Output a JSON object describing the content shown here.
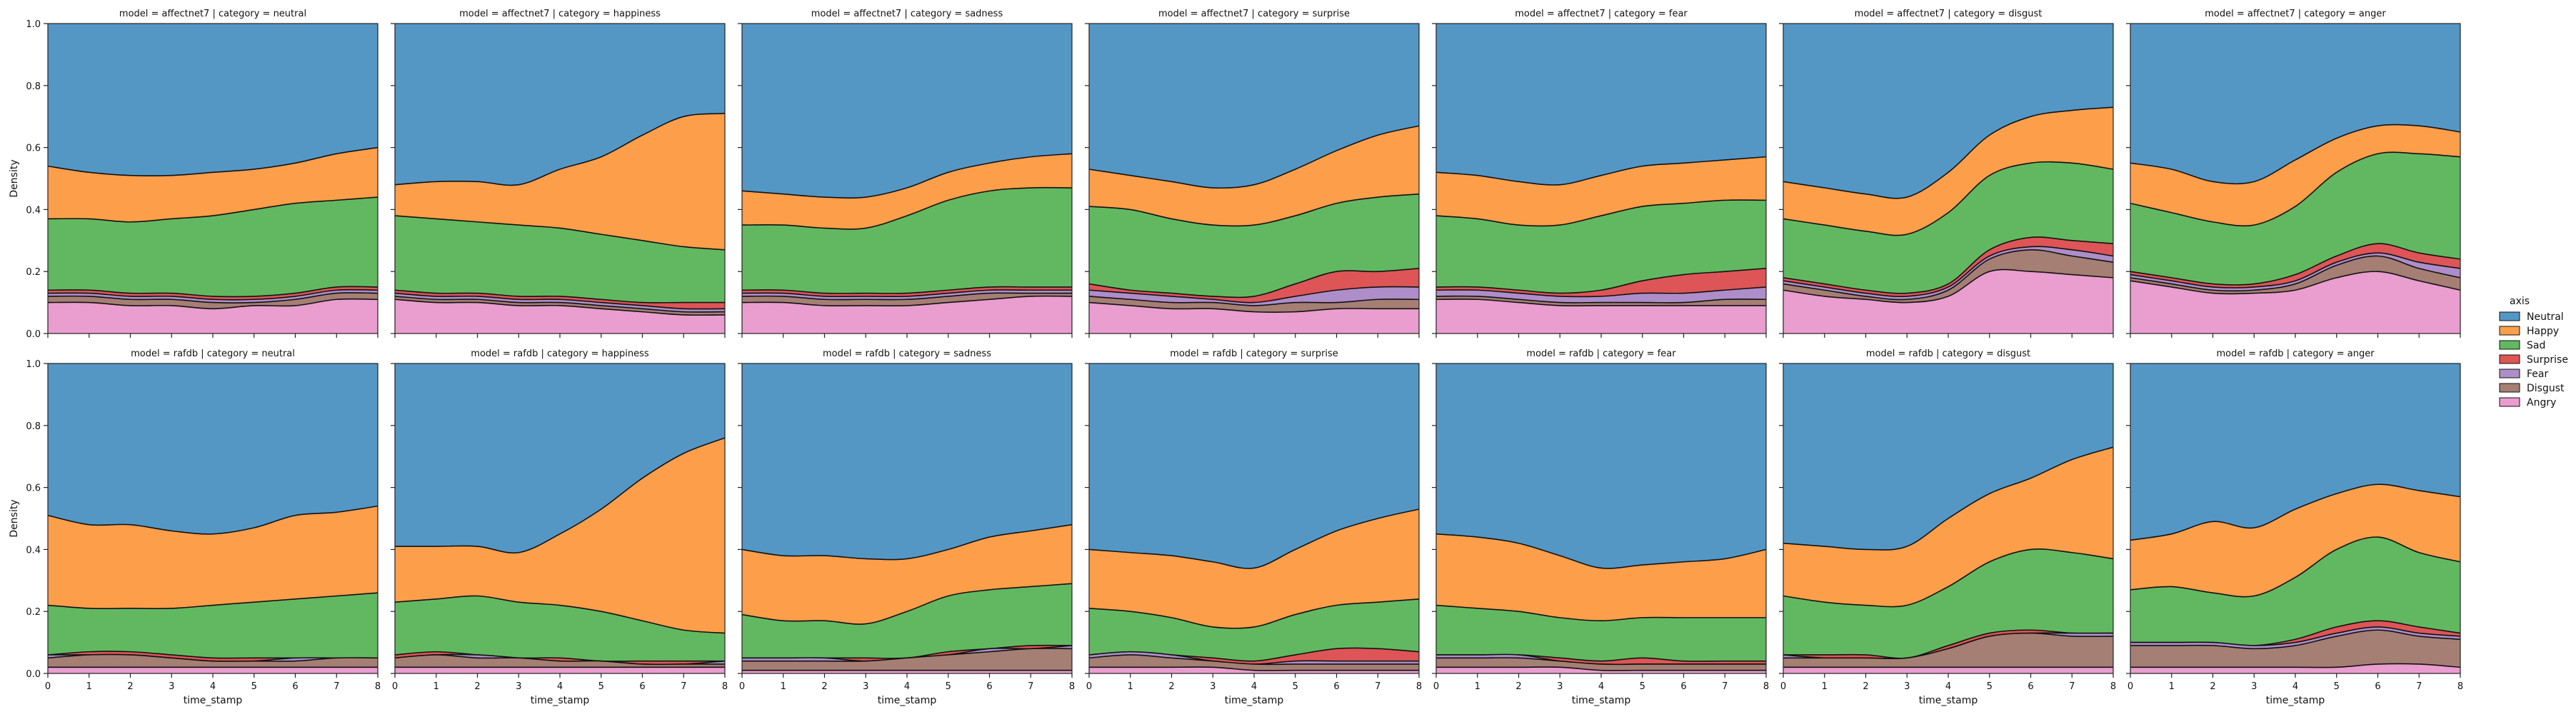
{
  "chart_data": {
    "type": "area",
    "subtype": "stacked-density-fill (proportions)",
    "facet_rows": [
      "affectnet7",
      "rafdb"
    ],
    "facet_cols": [
      "neutral",
      "happiness",
      "sadness",
      "surprise",
      "fear",
      "disgust",
      "anger"
    ],
    "facet_title_template": "model = {row} | category = {col}",
    "xlabel": "time_stamp",
    "ylabel": "Density",
    "xlim": [
      0,
      8
    ],
    "ylim": [
      0,
      1
    ],
    "xticks": [
      "0",
      "1",
      "2",
      "3",
      "4",
      "5",
      "6",
      "7",
      "8"
    ],
    "yticks": [
      "0.0",
      "0.2",
      "0.4",
      "0.6",
      "0.8",
      "1.0"
    ],
    "legend": {
      "title": "axis",
      "placement": "right-center",
      "entries": [
        "Neutral",
        "Happy",
        "Sad",
        "Surprise",
        "Fear",
        "Disgust",
        "Angry"
      ]
    },
    "colors": {
      "Neutral": "#5497c5",
      "Happy": "#fd9e4b",
      "Sad": "#62b861",
      "Surprise": "#dd5556",
      "Fear": "#ad8ec9",
      "Disgust": "#a57f74",
      "Angry": "#ea9dcf"
    },
    "x": [
      0,
      1,
      2,
      3,
      4,
      5,
      6,
      7,
      8
    ],
    "boundary_note": "Each panel lists cumulative upper boundaries (fraction 0-1) from bottom: Angry, Disgust, Fear, Surprise, Sad, Happy; Neutral fills to 1.0",
    "panels": [
      {
        "row": "affectnet7",
        "col": "neutral",
        "Angry": [
          0.1,
          0.1,
          0.09,
          0.09,
          0.08,
          0.09,
          0.09,
          0.11,
          0.11
        ],
        "Disgust": [
          0.12,
          0.12,
          0.11,
          0.11,
          0.1,
          0.1,
          0.11,
          0.13,
          0.13
        ],
        "Fear": [
          0.13,
          0.13,
          0.12,
          0.12,
          0.11,
          0.11,
          0.12,
          0.14,
          0.14
        ],
        "Surprise": [
          0.14,
          0.14,
          0.13,
          0.13,
          0.12,
          0.12,
          0.13,
          0.15,
          0.15
        ],
        "Sad": [
          0.37,
          0.37,
          0.36,
          0.37,
          0.38,
          0.4,
          0.42,
          0.43,
          0.44
        ],
        "Happy": [
          0.54,
          0.52,
          0.51,
          0.51,
          0.52,
          0.53,
          0.55,
          0.58,
          0.6
        ]
      },
      {
        "row": "affectnet7",
        "col": "happiness",
        "Angry": [
          0.11,
          0.1,
          0.1,
          0.09,
          0.09,
          0.08,
          0.07,
          0.06,
          0.06
        ],
        "Disgust": [
          0.12,
          0.11,
          0.11,
          0.1,
          0.1,
          0.09,
          0.08,
          0.07,
          0.07
        ],
        "Fear": [
          0.13,
          0.12,
          0.12,
          0.11,
          0.11,
          0.1,
          0.09,
          0.08,
          0.08
        ],
        "Surprise": [
          0.14,
          0.13,
          0.13,
          0.12,
          0.12,
          0.11,
          0.1,
          0.1,
          0.1
        ],
        "Sad": [
          0.38,
          0.37,
          0.36,
          0.35,
          0.34,
          0.32,
          0.3,
          0.28,
          0.27
        ],
        "Happy": [
          0.48,
          0.49,
          0.49,
          0.48,
          0.53,
          0.57,
          0.64,
          0.7,
          0.71
        ]
      },
      {
        "row": "affectnet7",
        "col": "sadness",
        "Angry": [
          0.1,
          0.1,
          0.09,
          0.09,
          0.09,
          0.1,
          0.11,
          0.12,
          0.12
        ],
        "Disgust": [
          0.12,
          0.12,
          0.11,
          0.11,
          0.11,
          0.12,
          0.13,
          0.13,
          0.13
        ],
        "Fear": [
          0.13,
          0.13,
          0.12,
          0.12,
          0.12,
          0.13,
          0.14,
          0.14,
          0.14
        ],
        "Surprise": [
          0.14,
          0.14,
          0.13,
          0.13,
          0.13,
          0.14,
          0.15,
          0.15,
          0.15
        ],
        "Sad": [
          0.35,
          0.35,
          0.34,
          0.34,
          0.38,
          0.43,
          0.46,
          0.47,
          0.47
        ],
        "Happy": [
          0.46,
          0.45,
          0.44,
          0.44,
          0.47,
          0.52,
          0.55,
          0.57,
          0.58
        ]
      },
      {
        "row": "affectnet7",
        "col": "surprise",
        "Angry": [
          0.1,
          0.09,
          0.08,
          0.08,
          0.07,
          0.07,
          0.08,
          0.08,
          0.08
        ],
        "Disgust": [
          0.12,
          0.11,
          0.1,
          0.1,
          0.09,
          0.1,
          0.1,
          0.11,
          0.11
        ],
        "Fear": [
          0.14,
          0.13,
          0.12,
          0.11,
          0.1,
          0.12,
          0.14,
          0.15,
          0.15
        ],
        "Surprise": [
          0.16,
          0.14,
          0.13,
          0.12,
          0.12,
          0.16,
          0.2,
          0.2,
          0.21
        ],
        "Sad": [
          0.41,
          0.4,
          0.37,
          0.35,
          0.35,
          0.38,
          0.42,
          0.44,
          0.45
        ],
        "Happy": [
          0.53,
          0.51,
          0.49,
          0.47,
          0.48,
          0.53,
          0.59,
          0.64,
          0.67
        ]
      },
      {
        "row": "affectnet7",
        "col": "fear",
        "Angry": [
          0.11,
          0.11,
          0.1,
          0.09,
          0.09,
          0.09,
          0.09,
          0.09,
          0.09
        ],
        "Disgust": [
          0.12,
          0.12,
          0.11,
          0.1,
          0.1,
          0.1,
          0.1,
          0.11,
          0.11
        ],
        "Fear": [
          0.14,
          0.14,
          0.13,
          0.12,
          0.12,
          0.13,
          0.13,
          0.14,
          0.15
        ],
        "Surprise": [
          0.15,
          0.15,
          0.14,
          0.13,
          0.14,
          0.17,
          0.19,
          0.2,
          0.21
        ],
        "Sad": [
          0.38,
          0.37,
          0.35,
          0.35,
          0.38,
          0.41,
          0.42,
          0.43,
          0.43
        ],
        "Happy": [
          0.52,
          0.51,
          0.49,
          0.48,
          0.51,
          0.54,
          0.55,
          0.56,
          0.57
        ]
      },
      {
        "row": "affectnet7",
        "col": "disgust",
        "Angry": [
          0.14,
          0.12,
          0.11,
          0.1,
          0.12,
          0.2,
          0.2,
          0.19,
          0.18
        ],
        "Disgust": [
          0.16,
          0.14,
          0.12,
          0.11,
          0.14,
          0.24,
          0.27,
          0.25,
          0.23
        ],
        "Fear": [
          0.17,
          0.15,
          0.13,
          0.12,
          0.15,
          0.25,
          0.28,
          0.27,
          0.25
        ],
        "Surprise": [
          0.18,
          0.16,
          0.14,
          0.13,
          0.16,
          0.27,
          0.31,
          0.3,
          0.29
        ],
        "Sad": [
          0.37,
          0.35,
          0.33,
          0.32,
          0.39,
          0.51,
          0.55,
          0.55,
          0.53
        ],
        "Happy": [
          0.49,
          0.47,
          0.45,
          0.44,
          0.52,
          0.64,
          0.7,
          0.72,
          0.73
        ]
      },
      {
        "row": "affectnet7",
        "col": "anger",
        "Angry": [
          0.17,
          0.15,
          0.13,
          0.13,
          0.14,
          0.18,
          0.2,
          0.17,
          0.14
        ],
        "Disgust": [
          0.18,
          0.16,
          0.14,
          0.14,
          0.16,
          0.22,
          0.25,
          0.21,
          0.18
        ],
        "Fear": [
          0.19,
          0.17,
          0.15,
          0.15,
          0.17,
          0.23,
          0.26,
          0.23,
          0.21
        ],
        "Surprise": [
          0.2,
          0.18,
          0.16,
          0.16,
          0.19,
          0.25,
          0.29,
          0.26,
          0.24
        ],
        "Sad": [
          0.42,
          0.39,
          0.36,
          0.35,
          0.41,
          0.52,
          0.58,
          0.58,
          0.57
        ],
        "Happy": [
          0.55,
          0.53,
          0.49,
          0.49,
          0.56,
          0.63,
          0.67,
          0.67,
          0.65
        ]
      },
      {
        "row": "rafdb",
        "col": "neutral",
        "Angry": [
          0.02,
          0.02,
          0.02,
          0.02,
          0.02,
          0.02,
          0.02,
          0.02,
          0.02
        ],
        "Disgust": [
          0.05,
          0.06,
          0.06,
          0.05,
          0.04,
          0.04,
          0.04,
          0.05,
          0.05
        ],
        "Fear": [
          0.06,
          0.06,
          0.06,
          0.05,
          0.04,
          0.04,
          0.05,
          0.05,
          0.05
        ],
        "Surprise": [
          0.06,
          0.07,
          0.07,
          0.06,
          0.05,
          0.05,
          0.05,
          0.05,
          0.05
        ],
        "Sad": [
          0.22,
          0.21,
          0.21,
          0.21,
          0.22,
          0.23,
          0.24,
          0.25,
          0.26
        ],
        "Happy": [
          0.51,
          0.48,
          0.48,
          0.46,
          0.45,
          0.47,
          0.51,
          0.52,
          0.54
        ]
      },
      {
        "row": "rafdb",
        "col": "happiness",
        "Angry": [
          0.02,
          0.02,
          0.02,
          0.02,
          0.02,
          0.02,
          0.02,
          0.02,
          0.02
        ],
        "Disgust": [
          0.05,
          0.06,
          0.05,
          0.05,
          0.04,
          0.04,
          0.03,
          0.03,
          0.03
        ],
        "Fear": [
          0.05,
          0.06,
          0.06,
          0.05,
          0.04,
          0.04,
          0.03,
          0.03,
          0.04
        ],
        "Surprise": [
          0.06,
          0.07,
          0.06,
          0.05,
          0.05,
          0.04,
          0.04,
          0.04,
          0.04
        ],
        "Sad": [
          0.23,
          0.24,
          0.25,
          0.23,
          0.22,
          0.2,
          0.17,
          0.14,
          0.13
        ],
        "Happy": [
          0.41,
          0.41,
          0.41,
          0.39,
          0.45,
          0.53,
          0.63,
          0.71,
          0.76
        ]
      },
      {
        "row": "rafdb",
        "col": "sadness",
        "Angry": [
          0.01,
          0.01,
          0.01,
          0.01,
          0.01,
          0.01,
          0.01,
          0.01,
          0.01
        ],
        "Disgust": [
          0.04,
          0.04,
          0.04,
          0.04,
          0.05,
          0.06,
          0.07,
          0.08,
          0.08
        ],
        "Fear": [
          0.05,
          0.05,
          0.05,
          0.04,
          0.05,
          0.06,
          0.08,
          0.08,
          0.09
        ],
        "Surprise": [
          0.05,
          0.05,
          0.05,
          0.05,
          0.05,
          0.07,
          0.08,
          0.09,
          0.09
        ],
        "Sad": [
          0.19,
          0.17,
          0.17,
          0.16,
          0.2,
          0.25,
          0.27,
          0.28,
          0.29
        ],
        "Happy": [
          0.4,
          0.38,
          0.38,
          0.37,
          0.37,
          0.4,
          0.44,
          0.46,
          0.48
        ]
      },
      {
        "row": "rafdb",
        "col": "surprise",
        "Angry": [
          0.02,
          0.02,
          0.02,
          0.02,
          0.01,
          0.01,
          0.01,
          0.01,
          0.01
        ],
        "Disgust": [
          0.05,
          0.06,
          0.05,
          0.04,
          0.03,
          0.03,
          0.03,
          0.03,
          0.03
        ],
        "Fear": [
          0.06,
          0.07,
          0.06,
          0.04,
          0.03,
          0.04,
          0.04,
          0.04,
          0.04
        ],
        "Surprise": [
          0.06,
          0.07,
          0.06,
          0.05,
          0.04,
          0.06,
          0.08,
          0.08,
          0.07
        ],
        "Sad": [
          0.21,
          0.2,
          0.18,
          0.15,
          0.15,
          0.19,
          0.22,
          0.23,
          0.24
        ],
        "Happy": [
          0.4,
          0.39,
          0.38,
          0.36,
          0.34,
          0.4,
          0.46,
          0.5,
          0.53
        ]
      },
      {
        "row": "rafdb",
        "col": "fear",
        "Angry": [
          0.02,
          0.02,
          0.02,
          0.02,
          0.01,
          0.01,
          0.01,
          0.01,
          0.01
        ],
        "Disgust": [
          0.05,
          0.05,
          0.05,
          0.04,
          0.03,
          0.03,
          0.03,
          0.03,
          0.03
        ],
        "Fear": [
          0.06,
          0.06,
          0.06,
          0.04,
          0.03,
          0.03,
          0.03,
          0.03,
          0.03
        ],
        "Surprise": [
          0.06,
          0.06,
          0.06,
          0.05,
          0.04,
          0.05,
          0.04,
          0.04,
          0.04
        ],
        "Sad": [
          0.22,
          0.21,
          0.2,
          0.18,
          0.17,
          0.18,
          0.18,
          0.18,
          0.18
        ],
        "Happy": [
          0.45,
          0.44,
          0.42,
          0.38,
          0.34,
          0.35,
          0.36,
          0.37,
          0.4
        ]
      },
      {
        "row": "rafdb",
        "col": "disgust",
        "Angry": [
          0.02,
          0.02,
          0.02,
          0.02,
          0.02,
          0.02,
          0.02,
          0.02,
          0.02
        ],
        "Disgust": [
          0.05,
          0.05,
          0.05,
          0.05,
          0.08,
          0.12,
          0.13,
          0.12,
          0.12
        ],
        "Fear": [
          0.06,
          0.05,
          0.05,
          0.05,
          0.08,
          0.12,
          0.13,
          0.13,
          0.13
        ],
        "Surprise": [
          0.06,
          0.06,
          0.06,
          0.05,
          0.09,
          0.13,
          0.14,
          0.13,
          0.13
        ],
        "Sad": [
          0.25,
          0.23,
          0.22,
          0.22,
          0.28,
          0.36,
          0.4,
          0.39,
          0.37
        ],
        "Happy": [
          0.42,
          0.41,
          0.4,
          0.41,
          0.5,
          0.58,
          0.63,
          0.69,
          0.73
        ]
      },
      {
        "row": "rafdb",
        "col": "anger",
        "Angry": [
          0.02,
          0.02,
          0.02,
          0.02,
          0.02,
          0.02,
          0.03,
          0.03,
          0.02
        ],
        "Disgust": [
          0.09,
          0.09,
          0.09,
          0.08,
          0.09,
          0.12,
          0.14,
          0.12,
          0.11
        ],
        "Fear": [
          0.1,
          0.1,
          0.1,
          0.09,
          0.1,
          0.13,
          0.15,
          0.13,
          0.12
        ],
        "Surprise": [
          0.1,
          0.1,
          0.1,
          0.09,
          0.11,
          0.15,
          0.17,
          0.15,
          0.13
        ],
        "Sad": [
          0.27,
          0.28,
          0.26,
          0.25,
          0.31,
          0.4,
          0.44,
          0.39,
          0.36
        ],
        "Happy": [
          0.43,
          0.45,
          0.49,
          0.47,
          0.53,
          0.58,
          0.61,
          0.59,
          0.57
        ]
      }
    ]
  }
}
